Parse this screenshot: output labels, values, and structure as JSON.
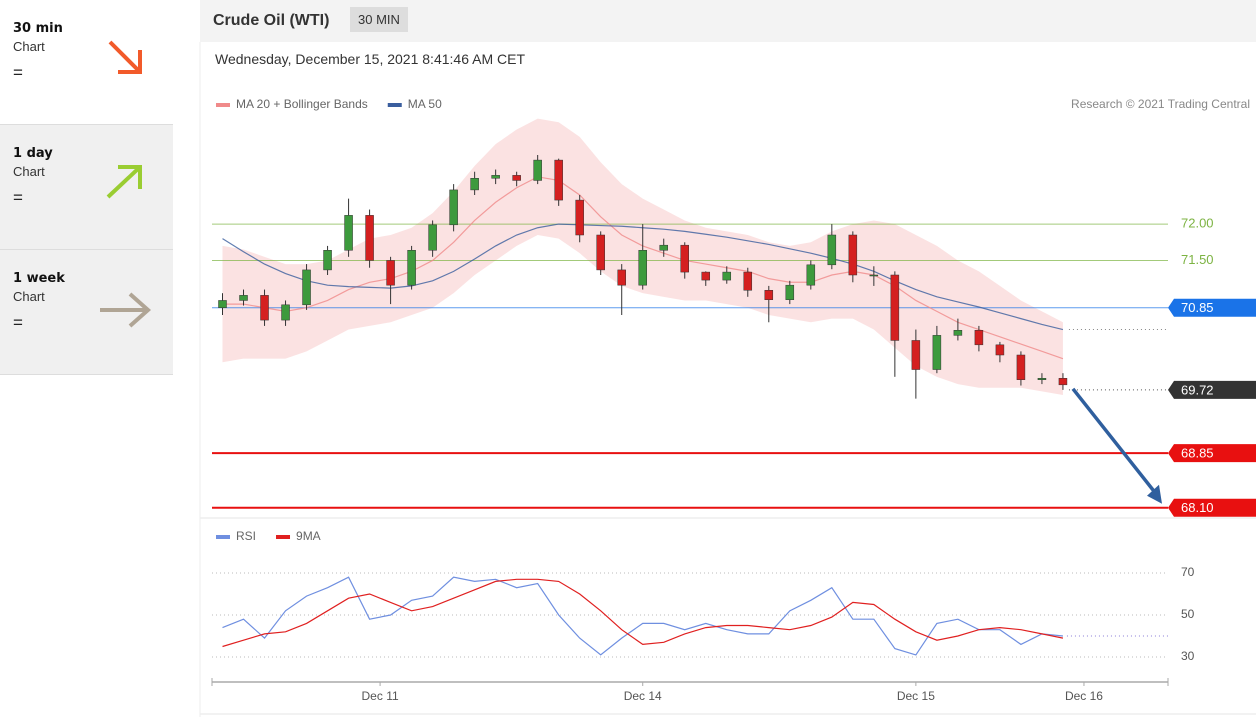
{
  "sidebar": [
    {
      "period": "30 min",
      "label": "Chart",
      "value": "="
    },
    {
      "period": "1 day",
      "label": "Chart",
      "value": "="
    },
    {
      "period": "1 week",
      "label": "Chart",
      "value": "="
    }
  ],
  "header": {
    "title": "Crude Oil (WTI)",
    "interval": "30 MIN",
    "date": "Wednesday, December 15, 2021 8:41:46 AM CET"
  },
  "chart_data": [
    {
      "type": "candlestick",
      "note": "Research © 2021 Trading Central",
      "up_color": "#3d9a3d",
      "down_color": "#d42020",
      "open": [
        70.85,
        70.95,
        71.02,
        70.68,
        70.89,
        71.37,
        71.64,
        72.12,
        71.5,
        71.16,
        71.64,
        71.99,
        72.47,
        72.63,
        72.67,
        72.6,
        72.88,
        72.33,
        71.85,
        71.37,
        71.16,
        71.64,
        71.71,
        71.34,
        71.23,
        71.34,
        71.09,
        70.96,
        71.16,
        71.44,
        71.85,
        71.3,
        71.3,
        70.4,
        70.0,
        70.47,
        70.54,
        70.34,
        70.2,
        69.86,
        69.88
      ],
      "high": [
        71.05,
        71.1,
        71.1,
        70.95,
        71.45,
        71.7,
        72.35,
        72.2,
        71.55,
        71.7,
        72.05,
        72.55,
        72.72,
        72.75,
        72.72,
        72.95,
        72.9,
        72.4,
        71.9,
        71.45,
        72.0,
        71.8,
        71.75,
        71.35,
        71.42,
        71.4,
        71.15,
        71.22,
        71.5,
        72.0,
        71.9,
        71.42,
        71.35,
        70.55,
        70.6,
        70.7,
        70.6,
        70.38,
        70.25,
        69.95,
        69.95
      ],
      "low": [
        70.75,
        70.88,
        70.6,
        70.6,
        70.82,
        71.3,
        71.55,
        71.4,
        70.9,
        71.1,
        71.55,
        71.9,
        72.4,
        72.55,
        72.52,
        72.55,
        72.25,
        71.75,
        71.3,
        70.75,
        71.1,
        71.55,
        71.25,
        71.15,
        71.18,
        71.0,
        70.65,
        70.9,
        71.1,
        71.38,
        71.2,
        71.15,
        69.9,
        69.6,
        69.95,
        70.4,
        70.25,
        70.1,
        69.78,
        69.8,
        69.72
      ],
      "close": [
        70.95,
        71.02,
        70.68,
        70.89,
        71.37,
        71.64,
        72.12,
        71.5,
        71.16,
        71.64,
        71.99,
        72.47,
        72.63,
        72.67,
        72.6,
        72.88,
        72.33,
        71.85,
        71.37,
        71.16,
        71.64,
        71.71,
        71.34,
        71.23,
        71.34,
        71.09,
        70.96,
        71.16,
        71.44,
        71.85,
        71.3,
        71.3,
        70.4,
        70.0,
        70.47,
        70.54,
        70.34,
        70.2,
        69.86,
        69.88,
        69.79
      ],
      "series": [
        {
          "name": "MA 20 + Bollinger Bands",
          "color": "#f08a8a",
          "values": [
            70.9,
            70.9,
            70.85,
            70.8,
            70.85,
            70.95,
            71.1,
            71.2,
            71.25,
            71.35,
            71.5,
            71.75,
            72.05,
            72.3,
            72.5,
            72.65,
            72.6,
            72.4,
            72.1,
            71.85,
            71.7,
            71.6,
            71.5,
            71.45,
            71.4,
            71.35,
            71.25,
            71.2,
            71.2,
            71.3,
            71.35,
            71.3,
            71.15,
            70.95,
            70.8,
            70.65,
            70.55,
            70.45,
            70.35,
            70.25,
            70.15
          ],
          "upper": [
            71.7,
            71.65,
            71.55,
            71.45,
            71.45,
            71.5,
            71.65,
            71.8,
            71.85,
            71.95,
            72.15,
            72.45,
            72.8,
            73.1,
            73.3,
            73.45,
            73.4,
            73.2,
            72.85,
            72.55,
            72.35,
            72.2,
            72.05,
            71.95,
            71.9,
            71.85,
            71.75,
            71.7,
            71.75,
            71.9,
            72.0,
            72.05,
            72.0,
            71.85,
            71.7,
            71.5,
            71.35,
            71.15,
            70.95,
            70.8,
            70.65
          ],
          "lower": [
            70.1,
            70.15,
            70.15,
            70.15,
            70.25,
            70.4,
            70.55,
            70.6,
            70.65,
            70.75,
            70.85,
            71.05,
            71.3,
            71.5,
            71.7,
            71.85,
            71.8,
            71.6,
            71.35,
            71.15,
            71.05,
            71.0,
            70.95,
            70.95,
            70.9,
            70.85,
            70.75,
            70.7,
            70.65,
            70.7,
            70.7,
            70.55,
            70.3,
            70.05,
            69.9,
            69.8,
            69.75,
            69.75,
            69.75,
            69.7,
            69.65
          ]
        },
        {
          "name": "MA 50",
          "color": "#3a5e9e",
          "values": [
            71.8,
            71.62,
            71.45,
            71.32,
            71.22,
            71.16,
            71.14,
            71.13,
            71.12,
            71.15,
            71.22,
            71.35,
            71.52,
            71.7,
            71.85,
            71.95,
            72.0,
            71.99,
            71.98,
            71.97,
            71.95,
            71.93,
            71.9,
            71.86,
            71.82,
            71.77,
            71.72,
            71.66,
            71.6,
            71.53,
            71.45,
            71.35,
            71.22,
            71.1,
            71.0,
            70.93,
            70.86,
            70.78,
            70.7,
            70.62,
            70.55
          ]
        }
      ],
      "levels": [
        {
          "value": 72,
          "label": "72.00",
          "color": "#7cb342",
          "style": "text",
          "line": "solid"
        },
        {
          "value": 71.5,
          "label": "71.50",
          "color": "#7cb342",
          "style": "text",
          "line": "solid"
        },
        {
          "value": 70.85,
          "color": "#1a73e8",
          "style": "box",
          "line": "solid"
        },
        {
          "value": 69.72,
          "color": "#333333",
          "style": "box",
          "line": "dotted"
        },
        {
          "value": 68.85,
          "color": "#e81010",
          "style": "box",
          "line": "thick"
        },
        {
          "value": 68.1,
          "label": "68.10",
          "color": "#e81010",
          "style": "box",
          "line": "thick"
        }
      ],
      "xlim": [
        -0.5,
        45
      ],
      "xticks": [
        {
          "value": 7.5,
          "label": "Dec 11"
        },
        {
          "value": 20,
          "label": "Dec 14"
        },
        {
          "value": 33,
          "label": "Dec 15"
        },
        {
          "value": 41,
          "label": "Dec 16"
        }
      ],
      "ylim": [
        68,
        73.5
      ]
    },
    {
      "type": "line",
      "series": [
        {
          "name": "RSI",
          "color": "#6f8fe0",
          "values": [
            44,
            48,
            39,
            52,
            59,
            63,
            68,
            48,
            50,
            57,
            59,
            68,
            66,
            67,
            63,
            65,
            50,
            39,
            31,
            39,
            46,
            46,
            43,
            46,
            43,
            41,
            41,
            52,
            57,
            63,
            48,
            48,
            34,
            31,
            46,
            48,
            43,
            43,
            36,
            41,
            40
          ]
        },
        {
          "name": "9MA",
          "color": "#e02020",
          "values": [
            35,
            38,
            41,
            42,
            46,
            52,
            58,
            60,
            56,
            52,
            54,
            58,
            62,
            66,
            67,
            67,
            66,
            60,
            52,
            43,
            36,
            37,
            41,
            44,
            45,
            45,
            44,
            43,
            45,
            49,
            56,
            55,
            48,
            42,
            38,
            40,
            43,
            44,
            43,
            41,
            39
          ]
        }
      ],
      "xlim": [
        -0.5,
        45
      ],
      "ylim": [
        20,
        80
      ],
      "yticks": [
        70,
        50,
        30
      ]
    }
  ]
}
